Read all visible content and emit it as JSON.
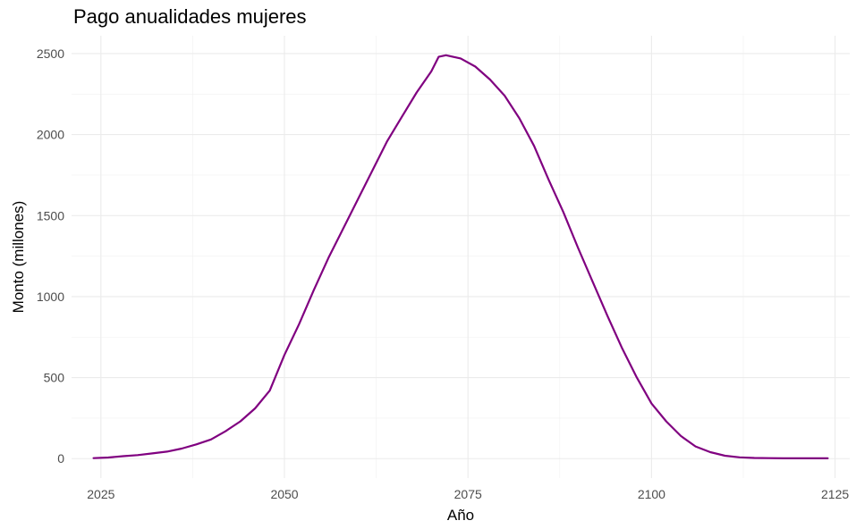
{
  "chart_data": {
    "type": "line",
    "title": "Pago anualidades mujeres",
    "xlabel": "Año",
    "ylabel": "Monto (millones)",
    "xlim": [
      2021,
      2127
    ],
    "ylim": [
      -120,
      2610
    ],
    "x_ticks": [
      2025,
      2050,
      2075,
      2100,
      2125
    ],
    "x_tick_labels": [
      "2025",
      "2050",
      "2075",
      "2100",
      "2125"
    ],
    "y_ticks": [
      0,
      500,
      1000,
      1500,
      2000,
      2500
    ],
    "y_tick_labels": [
      "0",
      "500",
      "1000",
      "1500",
      "2000",
      "2500"
    ],
    "grid": true,
    "legend": "none",
    "series": [
      {
        "color": "#800080",
        "x": [
          2024,
          2026,
          2028,
          2030,
          2032,
          2034,
          2036,
          2038,
          2040,
          2042,
          2044,
          2046,
          2048,
          2050,
          2052,
          2054,
          2056,
          2058,
          2060,
          2062,
          2064,
          2066,
          2068,
          2070,
          2071,
          2072,
          2074,
          2076,
          2078,
          2080,
          2082,
          2084,
          2086,
          2088,
          2090,
          2092,
          2094,
          2096,
          2098,
          2100,
          2102,
          2104,
          2106,
          2108,
          2110,
          2112,
          2114,
          2116,
          2118,
          2120,
          2122,
          2124
        ],
        "values": [
          3,
          7,
          15,
          22,
          32,
          43,
          62,
          88,
          118,
          170,
          230,
          310,
          420,
          640,
          830,
          1040,
          1240,
          1420,
          1600,
          1780,
          1960,
          2110,
          2260,
          2390,
          2480,
          2490,
          2470,
          2420,
          2340,
          2240,
          2100,
          1930,
          1720,
          1520,
          1300,
          1090,
          880,
          680,
          500,
          340,
          230,
          140,
          75,
          40,
          18,
          8,
          4,
          3,
          2,
          2,
          2,
          2
        ]
      }
    ]
  }
}
